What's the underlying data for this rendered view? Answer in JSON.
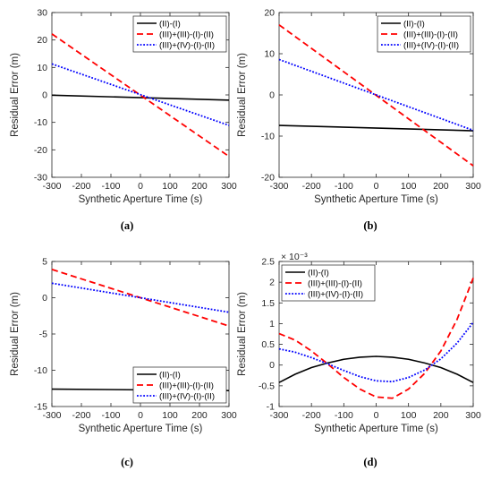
{
  "chart_data": [
    {
      "type": "line",
      "panel_label": "(a)",
      "xlabel": "Synthetic Aperture Time (s)",
      "ylabel": "Residual Error (m)",
      "xlim": [
        -300,
        300
      ],
      "ylim": [
        -30,
        30
      ],
      "xticks": [
        -300,
        -200,
        -100,
        0,
        100,
        200,
        300
      ],
      "yticks": [
        -30,
        -20,
        -10,
        0,
        10,
        20,
        30
      ],
      "legend_position": "top-right",
      "series": [
        {
          "name": "(II)-(I)",
          "color": "#000000",
          "style": "solid",
          "x": [
            -300,
            300
          ],
          "y": [
            -0.1,
            -1.9
          ]
        },
        {
          "name": "(III)+(III)-(I)-(II)",
          "color": "#ff0000",
          "style": "dashed",
          "x": [
            -300,
            300
          ],
          "y": [
            22.2,
            -22.4
          ]
        },
        {
          "name": "(III)+(IV)-(I)-(II)",
          "color": "#0000ff",
          "style": "dotted",
          "x": [
            -300,
            300
          ],
          "y": [
            11.3,
            -11.1
          ]
        }
      ]
    },
    {
      "type": "line",
      "panel_label": "(b)",
      "xlabel": "Synthetic Aperture Time (s)",
      "ylabel": "Residual Error (m)",
      "xlim": [
        -300,
        300
      ],
      "ylim": [
        -20,
        20
      ],
      "xticks": [
        -300,
        -200,
        -100,
        0,
        100,
        200,
        300
      ],
      "yticks": [
        -20,
        -10,
        0,
        10,
        20
      ],
      "legend_position": "top-right",
      "series": [
        {
          "name": "(II)-(I)",
          "color": "#000000",
          "style": "solid",
          "x": [
            -300,
            300
          ],
          "y": [
            -7.4,
            -8.7
          ]
        },
        {
          "name": "(III)+(III)-(I)-(II)",
          "color": "#ff0000",
          "style": "dashed",
          "x": [
            -300,
            300
          ],
          "y": [
            17.0,
            -17.2
          ]
        },
        {
          "name": "(III)+(IV)-(I)-(II)",
          "color": "#0000ff",
          "style": "dotted",
          "x": [
            -300,
            300
          ],
          "y": [
            8.6,
            -8.6
          ]
        }
      ]
    },
    {
      "type": "line",
      "panel_label": "(c)",
      "xlabel": "Synthetic Aperture Time (s)",
      "ylabel": "Residual Error (m)",
      "xlim": [
        -300,
        300
      ],
      "ylim": [
        -15,
        5
      ],
      "xticks": [
        -300,
        -200,
        -100,
        0,
        100,
        200,
        300
      ],
      "yticks": [
        -15,
        -10,
        -5,
        0,
        5
      ],
      "legend_position": "bottom-right",
      "series": [
        {
          "name": "(II)-(I)",
          "color": "#000000",
          "style": "solid",
          "x": [
            -300,
            300
          ],
          "y": [
            -12.6,
            -12.8
          ]
        },
        {
          "name": "(III)+(III)-(I)-(II)",
          "color": "#ff0000",
          "style": "dashed",
          "x": [
            -300,
            300
          ],
          "y": [
            3.9,
            -3.9
          ]
        },
        {
          "name": "(III)+(IV)-(I)-(II)",
          "color": "#0000ff",
          "style": "dotted",
          "x": [
            -300,
            300
          ],
          "y": [
            2.0,
            -2.0
          ]
        }
      ]
    },
    {
      "type": "line",
      "panel_label": "(d)",
      "xlabel": "Synthetic Aperture Time (s)",
      "ylabel": "Residual Error (m)",
      "y_exponent": "× 10⁻³",
      "xlim": [
        -300,
        300
      ],
      "ylim": [
        -1,
        2.5
      ],
      "xticks": [
        -300,
        -200,
        -100,
        0,
        100,
        200,
        300
      ],
      "yticks": [
        -1,
        -0.5,
        0,
        0.5,
        1,
        1.5,
        2,
        2.5
      ],
      "legend_position": "top-left",
      "series": [
        {
          "name": "(II)-(I)",
          "color": "#000000",
          "style": "solid",
          "x": [
            -300,
            -250,
            -200,
            -150,
            -100,
            -50,
            0,
            50,
            100,
            150,
            200,
            250,
            300
          ],
          "y": [
            -0.42,
            -0.22,
            -0.06,
            0.05,
            0.14,
            0.19,
            0.21,
            0.19,
            0.14,
            0.05,
            -0.06,
            -0.22,
            -0.42
          ]
        },
        {
          "name": "(III)+(III)-(I)-(II)",
          "color": "#ff0000",
          "style": "dashed",
          "x": [
            -300,
            -250,
            -200,
            -150,
            -100,
            -50,
            0,
            50,
            100,
            150,
            200,
            250,
            300
          ],
          "y": [
            0.76,
            0.6,
            0.34,
            0.03,
            -0.3,
            -0.58,
            -0.77,
            -0.8,
            -0.58,
            -0.2,
            0.34,
            1.1,
            2.1
          ]
        },
        {
          "name": "(III)+(IV)-(I)-(II)",
          "color": "#0000ff",
          "style": "dotted",
          "x": [
            -300,
            -250,
            -200,
            -150,
            -100,
            -50,
            0,
            50,
            100,
            150,
            200,
            250,
            300
          ],
          "y": [
            0.39,
            0.31,
            0.18,
            0.03,
            -0.13,
            -0.28,
            -0.38,
            -0.4,
            -0.3,
            -0.12,
            0.15,
            0.53,
            1.03
          ]
        }
      ]
    }
  ]
}
